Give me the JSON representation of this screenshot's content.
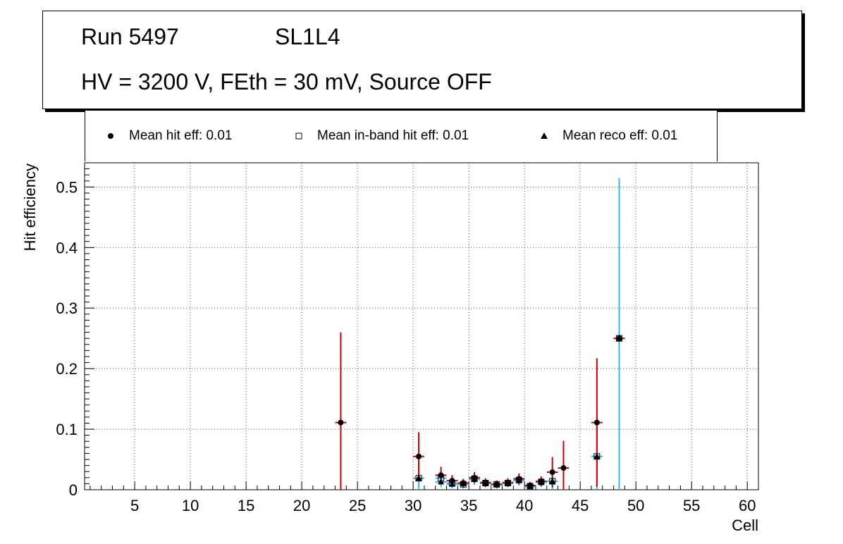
{
  "header": {
    "run": "Run 5497",
    "layer": "SL1L4",
    "conditions": "HV = 3200 V, FEth = 30 mV, Source OFF"
  },
  "legend": {
    "hit": "Mean hit  eff: 0.01",
    "inband": "Mean in-band hit eff: 0.01",
    "reco": "Mean reco eff: 0.01"
  },
  "colors": {
    "hit_error": "#cc0000",
    "inband_error": "#33bbee",
    "reco_error": "#33bbee",
    "grid": "#555555"
  },
  "chart_data": {
    "type": "scatter",
    "xlabel": "Cell",
    "ylabel": "Hit efficiency",
    "xlim": [
      0.5,
      61
    ],
    "ylim": [
      0,
      0.54
    ],
    "xticks": [
      5,
      10,
      15,
      20,
      25,
      30,
      35,
      40,
      45,
      50,
      55,
      60
    ],
    "yticks": [
      0,
      0.1,
      0.2,
      0.3,
      0.4,
      0.5
    ],
    "ytick_labels": [
      "0",
      "0.1",
      "0.2",
      "0.3",
      "0.4",
      "0.5"
    ],
    "grid": true,
    "legend_position": "top",
    "series": [
      {
        "key": "hit",
        "marker": "circle",
        "points": [
          {
            "x": 23.5,
            "y": 0.111,
            "ylo": 0.0,
            "yhi": 0.26
          },
          {
            "x": 30.5,
            "y": 0.055,
            "ylo": 0.015,
            "yhi": 0.095
          },
          {
            "x": 32.5,
            "y": 0.024,
            "ylo": 0.01,
            "yhi": 0.038
          },
          {
            "x": 33.5,
            "y": 0.015,
            "ylo": 0.006,
            "yhi": 0.024
          },
          {
            "x": 34.5,
            "y": 0.011,
            "ylo": 0.004,
            "yhi": 0.018
          },
          {
            "x": 35.5,
            "y": 0.02,
            "ylo": 0.011,
            "yhi": 0.029
          },
          {
            "x": 36.5,
            "y": 0.012,
            "ylo": 0.005,
            "yhi": 0.019
          },
          {
            "x": 37.5,
            "y": 0.009,
            "ylo": 0.003,
            "yhi": 0.015
          },
          {
            "x": 38.5,
            "y": 0.012,
            "ylo": 0.005,
            "yhi": 0.019
          },
          {
            "x": 39.5,
            "y": 0.018,
            "ylo": 0.009,
            "yhi": 0.027
          },
          {
            "x": 40.5,
            "y": 0.007,
            "ylo": 0.001,
            "yhi": 0.013
          },
          {
            "x": 41.5,
            "y": 0.014,
            "ylo": 0.006,
            "yhi": 0.022
          },
          {
            "x": 42.5,
            "y": 0.029,
            "ylo": 0.004,
            "yhi": 0.054
          },
          {
            "x": 43.5,
            "y": 0.036,
            "ylo": 0.0,
            "yhi": 0.081
          },
          {
            "x": 46.5,
            "y": 0.111,
            "ylo": 0.005,
            "yhi": 0.217
          },
          {
            "x": 48.5,
            "y": 0.25,
            "ylo": 0.25,
            "yhi": 0.25
          }
        ]
      },
      {
        "key": "inband",
        "marker": "open-square",
        "points": [
          {
            "x": 30.5,
            "y": 0.019,
            "ylo": 0.0,
            "yhi": 0.04
          },
          {
            "x": 32.5,
            "y": 0.019,
            "ylo": 0.007,
            "yhi": 0.031
          },
          {
            "x": 33.5,
            "y": 0.011,
            "ylo": 0.003,
            "yhi": 0.019
          },
          {
            "x": 34.5,
            "y": 0.009,
            "ylo": 0.002,
            "yhi": 0.016
          },
          {
            "x": 35.5,
            "y": 0.018,
            "ylo": 0.009,
            "yhi": 0.027
          },
          {
            "x": 36.5,
            "y": 0.011,
            "ylo": 0.004,
            "yhi": 0.018
          },
          {
            "x": 37.5,
            "y": 0.009,
            "ylo": 0.003,
            "yhi": 0.015
          },
          {
            "x": 38.5,
            "y": 0.011,
            "ylo": 0.004,
            "yhi": 0.018
          },
          {
            "x": 39.5,
            "y": 0.016,
            "ylo": 0.008,
            "yhi": 0.024
          },
          {
            "x": 40.5,
            "y": 0.006,
            "ylo": 0.0,
            "yhi": 0.012
          },
          {
            "x": 41.5,
            "y": 0.013,
            "ylo": 0.005,
            "yhi": 0.021
          },
          {
            "x": 42.5,
            "y": 0.014,
            "ylo": 0.0,
            "yhi": 0.03
          },
          {
            "x": 46.5,
            "y": 0.055,
            "ylo": 0.0,
            "yhi": 0.12
          },
          {
            "x": 48.5,
            "y": 0.25,
            "ylo": 0.0,
            "yhi": 0.515
          }
        ]
      },
      {
        "key": "reco",
        "marker": "triangle",
        "points": [
          {
            "x": 30.5,
            "y": 0.019,
            "ylo": 0.0,
            "yhi": 0.04
          },
          {
            "x": 32.5,
            "y": 0.013,
            "ylo": 0.004,
            "yhi": 0.022
          },
          {
            "x": 33.5,
            "y": 0.009,
            "ylo": 0.002,
            "yhi": 0.016
          },
          {
            "x": 34.5,
            "y": 0.01,
            "ylo": 0.003,
            "yhi": 0.017
          },
          {
            "x": 35.5,
            "y": 0.017,
            "ylo": 0.008,
            "yhi": 0.026
          },
          {
            "x": 36.5,
            "y": 0.01,
            "ylo": 0.004,
            "yhi": 0.016
          },
          {
            "x": 37.5,
            "y": 0.008,
            "ylo": 0.002,
            "yhi": 0.014
          },
          {
            "x": 38.5,
            "y": 0.01,
            "ylo": 0.004,
            "yhi": 0.016
          },
          {
            "x": 39.5,
            "y": 0.015,
            "ylo": 0.007,
            "yhi": 0.023
          },
          {
            "x": 40.5,
            "y": 0.005,
            "ylo": 0.0,
            "yhi": 0.011
          },
          {
            "x": 41.5,
            "y": 0.012,
            "ylo": 0.005,
            "yhi": 0.019
          },
          {
            "x": 42.5,
            "y": 0.014,
            "ylo": 0.0,
            "yhi": 0.03
          },
          {
            "x": 46.5,
            "y": 0.055,
            "ylo": 0.0,
            "yhi": 0.12
          },
          {
            "x": 48.5,
            "y": 0.25,
            "ylo": 0.0,
            "yhi": 0.515
          }
        ]
      }
    ]
  }
}
